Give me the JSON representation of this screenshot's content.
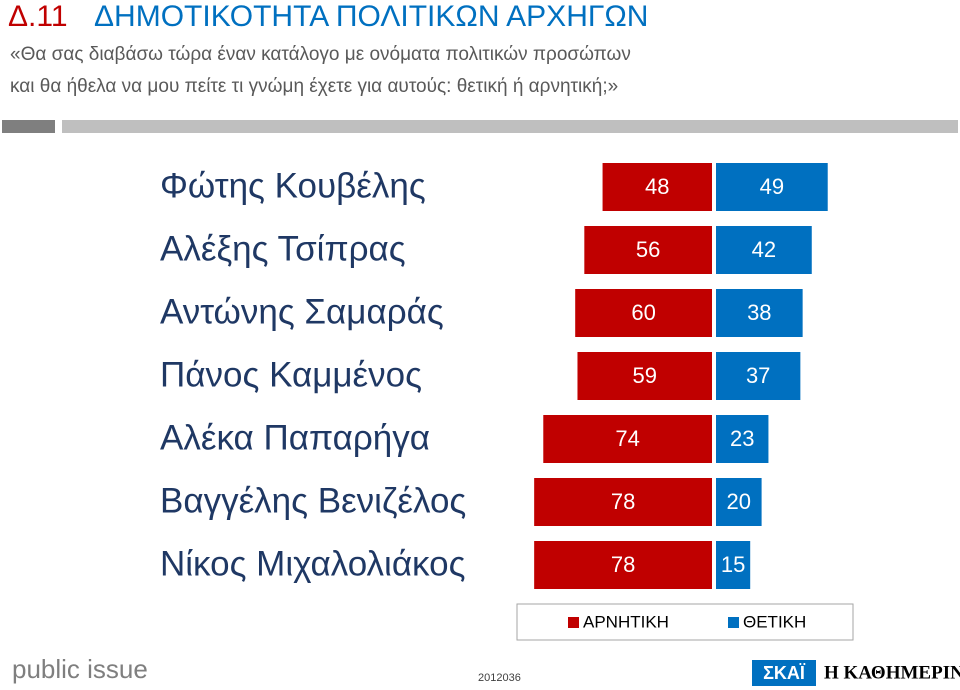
{
  "chart_data": {
    "type": "diverging_bar",
    "title_number": "Δ.11",
    "title": "ΔΗΜΟΤΙΚΟΤΗΤΑ ΠΟΛΙΤΙΚΩΝ ΑΡΧΗΓΩΝ",
    "subtitle": [
      "«Θα σας διαβάσω τώρα έναν κατάλογο με ονόματα πολιτικών προσώπων",
      "και θα ήθελα να μου πείτε τι γνώμη έχετε για αυτούς: θετική ή αρνητική;»"
    ],
    "categories": [
      "Φώτης Κουβέλης",
      "Αλέξης Τσίπρας",
      "Αντώνης Σαμαράς",
      "Πάνος Καμμένος",
      "Αλέκα Παπαρήγα",
      "Βαγγέλης Βενιζέλος",
      "Νίκος Μιχαλολιάκος"
    ],
    "series": [
      {
        "name": "ΑΡΝΗΤΙΚΗ",
        "color": "#c00000",
        "values": [
          48,
          56,
          60,
          59,
          74,
          78,
          78
        ]
      },
      {
        "name": "ΘΕΤΙΚΗ",
        "color": "#0070c0",
        "values": [
          49,
          42,
          38,
          37,
          23,
          20,
          15
        ]
      }
    ],
    "footer": {
      "left_logo": "public issue",
      "code": "2012036",
      "logo_1": "ΣΚΑΪ",
      "logo_2": "Η ΚΑΘΗΜΕΡΙΝΗ"
    }
  }
}
